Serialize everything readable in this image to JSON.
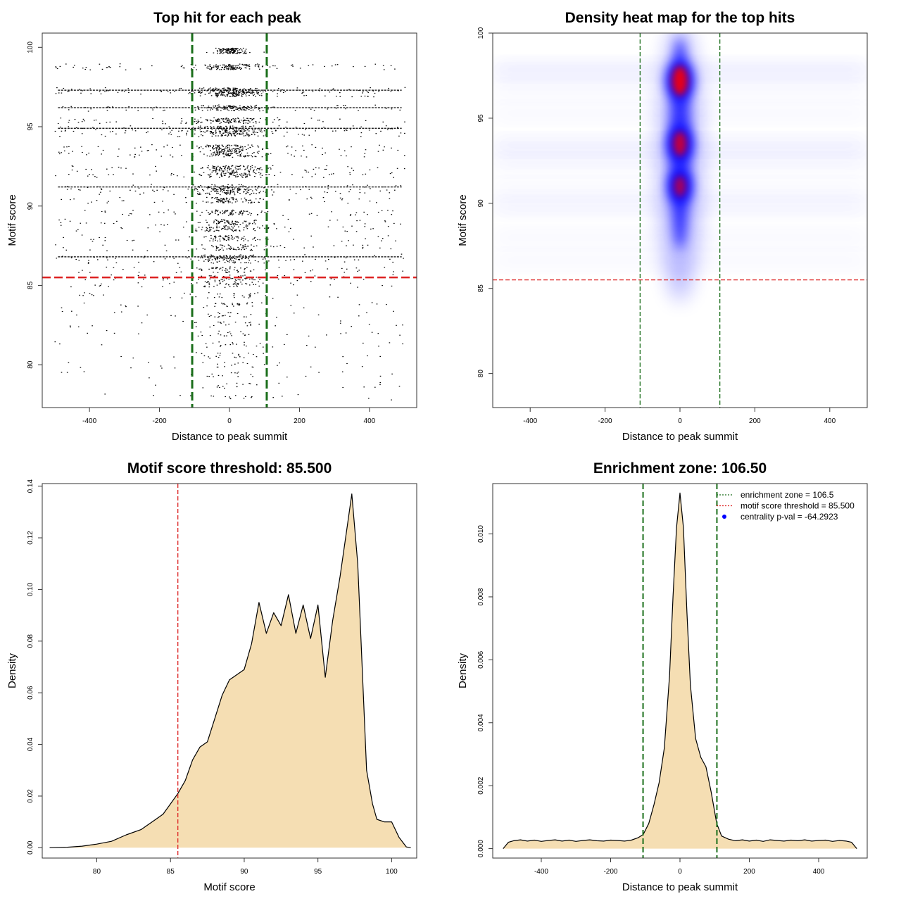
{
  "colors": {
    "enrichment_line": "#1a6e1a",
    "threshold_line": "#dd2222",
    "density_fill": "#f5deb3",
    "points": "#000000",
    "heat_low": "#0000ff",
    "heat_high": "#ff0000",
    "legend_dot": "#0000ff"
  },
  "chart_data": [
    {
      "id": "scatter",
      "type": "scatter",
      "title": "Top hit for each peak",
      "xlabel": "Distance to peak summit",
      "ylabel": "Motif score",
      "xlim": [
        -535,
        535
      ],
      "ylim": [
        77.3,
        100.9
      ],
      "xticks": [
        -400,
        -200,
        0,
        200,
        400
      ],
      "yticks": [
        80,
        85,
        90,
        95,
        100
      ],
      "vlines": [
        -106.5,
        106.5
      ],
      "hline": 85.5,
      "score_levels": [
        99.8,
        98.8,
        97.3,
        97.1,
        96.2,
        95.4,
        94.9,
        94.6,
        93.7,
        93.3,
        92.4,
        92.0,
        91.2,
        90.9,
        90.4,
        89.6,
        89.0,
        88.6,
        88.0,
        87.4,
        86.8,
        86.6,
        86.0,
        85.5,
        85.1,
        84.4,
        83.8,
        83.2,
        82.6,
        82.0,
        81.3,
        80.6,
        80.0,
        79.4,
        78.7,
        78.0
      ],
      "x_range": [
        -500,
        500
      ]
    },
    {
      "id": "heatmap",
      "type": "heatmap",
      "title": "Density heat map for the top hits",
      "xlabel": "Distance to peak summit",
      "ylabel": "Motif score",
      "xlim": [
        -500,
        500
      ],
      "ylim": [
        78,
        100
      ],
      "xticks": [
        -400,
        -200,
        0,
        200,
        400
      ],
      "yticks": [
        80,
        85,
        90,
        95,
        100
      ],
      "vlines": [
        -106.5,
        106.5
      ],
      "hline": 85.5,
      "hotspots": [
        {
          "score": 97.2,
          "intensity": 1.0
        },
        {
          "score": 93.5,
          "intensity": 0.75
        },
        {
          "score": 91.0,
          "intensity": 0.55
        }
      ]
    },
    {
      "id": "score-density",
      "type": "area",
      "title": "Motif score threshold: 85.500",
      "xlabel": "Motif score",
      "ylabel": "Density",
      "xlim": [
        76.3,
        101.7
      ],
      "ylim": [
        -0.004,
        0.141
      ],
      "xticks": [
        80,
        85,
        90,
        95,
        100
      ],
      "yticks": [
        0.0,
        0.02,
        0.04,
        0.06,
        0.08,
        0.1,
        0.12,
        0.14
      ],
      "ytick_labels": [
        "0.00",
        "0.02",
        "0.04",
        "0.06",
        "0.08",
        "0.10",
        "0.12",
        "0.14"
      ],
      "vline": 85.5,
      "x": [
        76.8,
        78,
        79,
        80,
        81,
        82,
        83,
        84,
        84.5,
        85,
        85.5,
        86,
        86.5,
        87,
        87.5,
        88,
        88.5,
        89,
        89.5,
        90,
        90.5,
        91,
        91.5,
        92,
        92.5,
        93,
        93.5,
        94,
        94.5,
        95,
        95.5,
        96,
        96.5,
        97,
        97.3,
        97.7,
        98,
        98.3,
        98.7,
        99,
        99.5,
        100,
        100.5,
        101,
        101.3
      ],
      "y": [
        0.0,
        0.0002,
        0.0006,
        0.0014,
        0.0025,
        0.005,
        0.007,
        0.011,
        0.013,
        0.017,
        0.021,
        0.026,
        0.034,
        0.039,
        0.041,
        0.05,
        0.059,
        0.065,
        0.067,
        0.069,
        0.079,
        0.095,
        0.083,
        0.091,
        0.086,
        0.098,
        0.083,
        0.094,
        0.081,
        0.094,
        0.066,
        0.088,
        0.105,
        0.125,
        0.137,
        0.11,
        0.07,
        0.03,
        0.017,
        0.011,
        0.01,
        0.01,
        0.004,
        0.0003,
        0.0
      ]
    },
    {
      "id": "distance-density",
      "type": "area",
      "title": "Enrichment zone: 106.50",
      "xlabel": "Distance to peak summit",
      "ylabel": "Density",
      "xlim": [
        -540,
        540
      ],
      "ylim": [
        -0.0003,
        0.0116
      ],
      "xticks": [
        -400,
        -200,
        0,
        200,
        400
      ],
      "yticks": [
        0.0,
        0.002,
        0.004,
        0.006,
        0.008,
        0.01
      ],
      "ytick_labels": [
        "0.000",
        "0.002",
        "0.004",
        "0.006",
        "0.008",
        "0.010"
      ],
      "vlines": [
        -106.5,
        106.5
      ],
      "x": [
        -510,
        -495,
        -480,
        -460,
        -440,
        -420,
        -400,
        -380,
        -360,
        -340,
        -320,
        -300,
        -280,
        -260,
        -240,
        -220,
        -200,
        -180,
        -160,
        -140,
        -120,
        -106,
        -90,
        -75,
        -60,
        -45,
        -30,
        -20,
        -10,
        0,
        10,
        20,
        30,
        45,
        60,
        75,
        90,
        106,
        120,
        140,
        160,
        180,
        200,
        220,
        240,
        260,
        280,
        300,
        320,
        340,
        360,
        380,
        400,
        420,
        440,
        460,
        480,
        495,
        510
      ],
      "y": [
        0.0,
        0.0002,
        0.00025,
        0.00028,
        0.00024,
        0.00027,
        0.00023,
        0.00026,
        0.00028,
        0.00024,
        0.00027,
        0.00023,
        0.00026,
        0.00028,
        0.00025,
        0.00024,
        0.00027,
        0.00026,
        0.00024,
        0.00027,
        0.00035,
        0.00045,
        0.0008,
        0.0014,
        0.0021,
        0.0032,
        0.0055,
        0.008,
        0.0102,
        0.0113,
        0.0102,
        0.0075,
        0.0052,
        0.0035,
        0.0029,
        0.0026,
        0.0018,
        0.0008,
        0.0004,
        0.0003,
        0.00025,
        0.00028,
        0.00024,
        0.00027,
        0.00023,
        0.00028,
        0.00026,
        0.00024,
        0.00027,
        0.00025,
        0.00028,
        0.00024,
        0.00026,
        0.00027,
        0.00023,
        0.00026,
        0.00024,
        0.0002,
        0.0
      ],
      "legend": [
        {
          "label": "enrichment zone = 106.5",
          "kind": "dotted-line",
          "color": "#1a6e1a"
        },
        {
          "label": "motif score threshold = 85.500",
          "kind": "dotted-line",
          "color": "#dd2222"
        },
        {
          "label": "centrality p-val = -64.2923",
          "kind": "point",
          "color": "#0000ff"
        }
      ]
    }
  ]
}
